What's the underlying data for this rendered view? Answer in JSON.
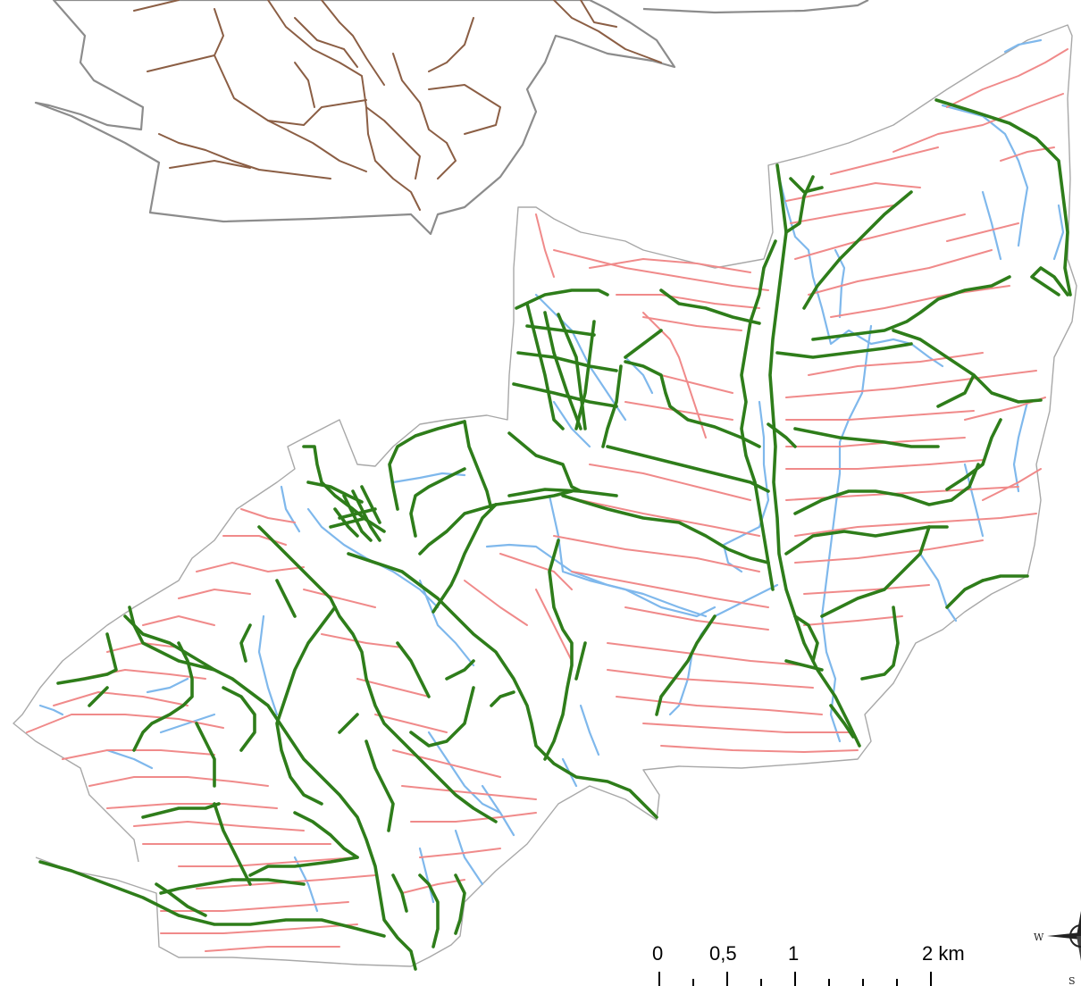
{
  "map": {
    "scale_bar": {
      "labels": [
        "0",
        "0,5",
        "1",
        "2 km"
      ],
      "values_km": [
        0,
        0.5,
        1,
        2
      ]
    },
    "compass": {
      "letters": [
        "W",
        "S"
      ]
    },
    "legend_colors": {
      "existing_network": "#8b5e44",
      "main_roads": "#2e7d1a",
      "secondary_roads": "#f08a8a",
      "streams": "#7fb8ec",
      "boundary": "#a8a8a8"
    }
  }
}
